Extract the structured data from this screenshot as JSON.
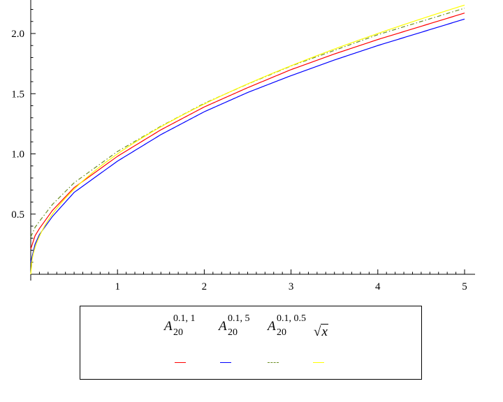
{
  "chart_data": {
    "type": "line",
    "title": "",
    "xlabel": "",
    "ylabel": "",
    "xlim": [
      0,
      5
    ],
    "ylim": [
      0,
      2.2
    ],
    "x_ticks": [
      1,
      2,
      3,
      4,
      5
    ],
    "x_tick_labels": [
      "1",
      "2",
      "3",
      "4",
      "5"
    ],
    "y_ticks": [
      0.5,
      1.0,
      1.5,
      2.0
    ],
    "y_tick_labels": [
      "0.5",
      "1.0",
      "1.5",
      "2.0"
    ],
    "grid": false,
    "legend_position": "bottom",
    "series": [
      {
        "legend": {
          "base": "A",
          "sub": "20",
          "sup": "0.1, 1"
        },
        "color": "#ff0000",
        "style": "solid",
        "x": [
          0,
          0.05,
          0.1,
          0.25,
          0.5,
          1,
          1.5,
          2,
          2.5,
          3,
          3.5,
          4,
          4.5,
          5
        ],
        "y": [
          0.21,
          0.32,
          0.38,
          0.53,
          0.72,
          0.98,
          1.2,
          1.39,
          1.55,
          1.7,
          1.83,
          1.95,
          2.06,
          2.17
        ]
      },
      {
        "legend": {
          "base": "A",
          "sub": "20",
          "sup": "0.1, 5"
        },
        "color": "#0000ff",
        "style": "solid",
        "x": [
          0,
          0.05,
          0.1,
          0.25,
          0.5,
          1,
          1.5,
          2,
          2.5,
          3,
          3.5,
          4,
          4.5,
          5
        ],
        "y": [
          0.1,
          0.25,
          0.33,
          0.48,
          0.68,
          0.94,
          1.16,
          1.35,
          1.51,
          1.65,
          1.78,
          1.9,
          2.01,
          2.12
        ]
      },
      {
        "legend": {
          "base": "A",
          "sub": "20",
          "sup": "0.1, 0.5"
        },
        "color": "#6b8e23",
        "style": "dashdot",
        "x": [
          0,
          0.05,
          0.1,
          0.25,
          0.5,
          1,
          1.5,
          2,
          2.5,
          3,
          3.5,
          4,
          4.5,
          5
        ],
        "y": [
          0.31,
          0.39,
          0.44,
          0.58,
          0.76,
          1.02,
          1.23,
          1.42,
          1.58,
          1.73,
          1.86,
          1.99,
          2.1,
          2.21
        ]
      },
      {
        "legend": {
          "base": "x",
          "sqrt": true
        },
        "color": "#ffff00",
        "style": "solid",
        "x": [
          0,
          0.01,
          0.05,
          0.1,
          0.25,
          0.5,
          1,
          1.5,
          2,
          2.5,
          3,
          3.5,
          4,
          4.5,
          5
        ],
        "y": [
          0,
          0.1,
          0.224,
          0.316,
          0.5,
          0.707,
          1.0,
          1.225,
          1.414,
          1.581,
          1.732,
          1.871,
          2.0,
          2.121,
          2.236
        ]
      }
    ]
  }
}
